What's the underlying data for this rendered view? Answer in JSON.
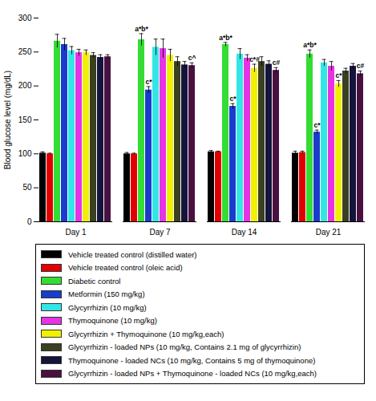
{
  "chart_data": {
    "type": "bar",
    "y_label": "Blood glucose level (mg/dL)",
    "categories": [
      "Day 1",
      "Day 7",
      "Day 14",
      "Day 21"
    ],
    "ylim": [
      0,
      300
    ],
    "yticks": [
      0,
      50,
      100,
      150,
      200,
      250,
      300
    ],
    "legend": "bottom",
    "series": [
      {
        "name": "Vehicle treated control (distilled water)",
        "color": "#000000",
        "values": [
          101,
          100,
          103,
          101
        ],
        "errors": [
          2,
          2,
          2,
          3
        ]
      },
      {
        "name": "Vehicle treated control (oleic acid)",
        "color": "#e00000",
        "values": [
          100,
          100,
          103,
          102
        ],
        "errors": [
          1,
          1,
          1,
          2
        ]
      },
      {
        "name": "Diabetic control",
        "color": "#33dd33",
        "values": [
          266,
          268,
          261,
          247
        ],
        "errors": [
          10,
          9,
          3,
          6
        ]
      },
      {
        "name": "Metformin (150 mg/kg)",
        "color": "#1a3ccc",
        "values": [
          261,
          194,
          170,
          132
        ],
        "errors": [
          9,
          5,
          4,
          3
        ]
      },
      {
        "name": "Glycyrrhizin (10 mg/kg)",
        "color": "#33e6e6",
        "values": [
          252,
          257,
          247,
          234
        ],
        "errors": [
          6,
          12,
          8,
          5
        ]
      },
      {
        "name": "Thymoquinone (10 mg/kg)",
        "color": "#e633e6",
        "values": [
          249,
          255,
          241,
          229
        ],
        "errors": [
          5,
          14,
          5,
          7
        ]
      },
      {
        "name": "Glycyrrhizin + Thymoquinone (10 mg/kg,each)",
        "color": "#f0f000",
        "values": [
          249,
          245,
          226,
          203
        ],
        "errors": [
          4,
          9,
          6,
          5
        ]
      },
      {
        "name": "Glycyrrhizin - loaded NPs (10 mg/kg, Contains 2.1 mg of glycyrrhizin)",
        "color": "#3a4020",
        "values": [
          245,
          236,
          236,
          222
        ],
        "errors": [
          4,
          7,
          7,
          4
        ]
      },
      {
        "name": "Thymoquinone - loaded NCs (10 mg/kg, Contains 5 mg of thymoquinone)",
        "color": "#14143c",
        "values": [
          242,
          231,
          232,
          229
        ],
        "errors": [
          4,
          5,
          5,
          4
        ]
      },
      {
        "name": "Glycyrrhizin - loaded NPs + Thymoquinone - loaded NCs (10 mg/kg,each)",
        "color": "#4a1040",
        "values": [
          243,
          230,
          223,
          218
        ],
        "errors": [
          3,
          4,
          4,
          4
        ]
      }
    ],
    "annotations": [
      {
        "category": "Day 7",
        "series": "Diabetic control",
        "text": "a*b*"
      },
      {
        "category": "Day 7",
        "series": "Metformin (150 mg/kg)",
        "text": "c*"
      },
      {
        "category": "Day 7",
        "series": "Glycyrrhizin - loaded NPs + Thymoquinone - loaded NCs (10 mg/kg,each)",
        "text": "c^"
      },
      {
        "category": "Day 14",
        "series": "Diabetic control",
        "text": "a*b*"
      },
      {
        "category": "Day 14",
        "series": "Metformin (150 mg/kg)",
        "text": "c*"
      },
      {
        "category": "Day 14",
        "series": "Glycyrrhizin + Thymoquinone (10 mg/kg,each)",
        "text": "c*#"
      },
      {
        "category": "Day 14",
        "series": "Glycyrrhizin - loaded NPs + Thymoquinone - loaded NCs (10 mg/kg,each)",
        "text": "c#"
      },
      {
        "category": "Day 21",
        "series": "Diabetic control",
        "text": "a*b*"
      },
      {
        "category": "Day 21",
        "series": "Metformin (150 mg/kg)",
        "text": "c*"
      },
      {
        "category": "Day 21",
        "series": "Glycyrrhizin + Thymoquinone (10 mg/kg,each)",
        "text": "c*"
      },
      {
        "category": "Day 21",
        "series": "Glycyrrhizin - loaded NPs + Thymoquinone - loaded NCs (10 mg/kg,each)",
        "text": "c#"
      }
    ]
  }
}
